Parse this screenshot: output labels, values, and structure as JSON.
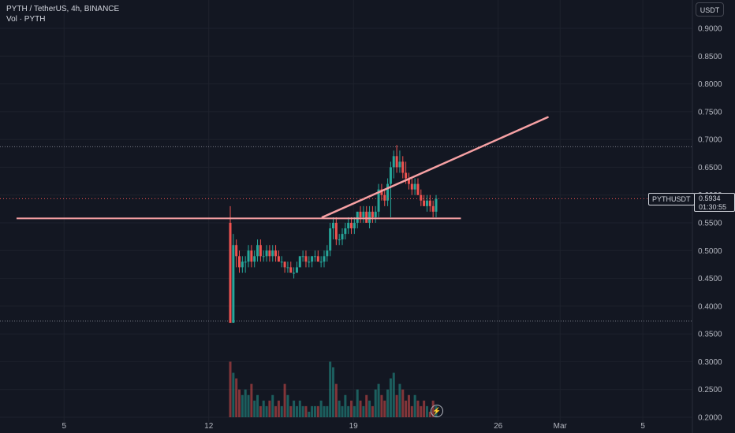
{
  "legend": {
    "title": "PYTH / TetherUS, 4h, BINANCE",
    "volume": "Vol · PYTH"
  },
  "currency_button": "USDT",
  "symbol_label": "PYTHUSDT",
  "last_price": "0.5934",
  "countdown": "01:30:55",
  "icons": {
    "replay": "lightning-icon"
  },
  "colors": {
    "background": "#131722",
    "up": "#26a69a",
    "down": "#ef5350",
    "drawing": "#f7a1a4",
    "grid": "#1e222d",
    "text": "#b2b5be"
  },
  "chart_data": {
    "type": "candlestick",
    "y_axis": {
      "min": 0.2,
      "max": 0.95,
      "ticks": [
        "0.9000",
        "0.8500",
        "0.8000",
        "0.7500",
        "0.7000",
        "0.6500",
        "0.6000",
        "0.5500",
        "0.5000",
        "0.4500",
        "0.4000",
        "0.3500",
        "0.3000",
        "0.2500",
        "0.2000"
      ]
    },
    "x_axis": {
      "start_day": 1.9,
      "end_day": 35.4,
      "ticks": [
        {
          "day": 5,
          "label": "5"
        },
        {
          "day": 12,
          "label": "12"
        },
        {
          "day": 19,
          "label": "19"
        },
        {
          "day": 26,
          "label": "26"
        },
        {
          "day": 29,
          "label": "Mar"
        },
        {
          "day": 33,
          "label": "5"
        }
      ]
    },
    "horizontal_lines": [
      0.687,
      0.373
    ],
    "drawings": [
      {
        "type": "horizontal_segment",
        "price": 0.558,
        "from_day": 2.7,
        "to_day": 24.2
      },
      {
        "type": "trend_line",
        "from": {
          "day": 17.5,
          "price": 0.56
        },
        "to": {
          "day": 28.4,
          "price": 0.74
        }
      }
    ],
    "last_price": 0.5934,
    "candles": [
      [
        0.55,
        0.58,
        0.37,
        0.37
      ],
      [
        0.37,
        0.53,
        0.37,
        0.51
      ],
      [
        0.51,
        0.52,
        0.47,
        0.49
      ],
      [
        0.49,
        0.5,
        0.46,
        0.47
      ],
      [
        0.47,
        0.49,
        0.46,
        0.48
      ],
      [
        0.48,
        0.49,
        0.46,
        0.48
      ],
      [
        0.48,
        0.51,
        0.47,
        0.5
      ],
      [
        0.5,
        0.51,
        0.47,
        0.48
      ],
      [
        0.48,
        0.5,
        0.47,
        0.49
      ],
      [
        0.49,
        0.52,
        0.48,
        0.51
      ],
      [
        0.51,
        0.52,
        0.48,
        0.49
      ],
      [
        0.49,
        0.5,
        0.48,
        0.49
      ],
      [
        0.49,
        0.51,
        0.48,
        0.5
      ],
      [
        0.5,
        0.51,
        0.48,
        0.49
      ],
      [
        0.49,
        0.51,
        0.48,
        0.5
      ],
      [
        0.5,
        0.51,
        0.48,
        0.49
      ],
      [
        0.49,
        0.5,
        0.48,
        0.48
      ],
      [
        0.48,
        0.49,
        0.47,
        0.48
      ],
      [
        0.48,
        0.48,
        0.46,
        0.47
      ],
      [
        0.47,
        0.48,
        0.46,
        0.47
      ],
      [
        0.47,
        0.48,
        0.46,
        0.46
      ],
      [
        0.46,
        0.47,
        0.45,
        0.46
      ],
      [
        0.46,
        0.48,
        0.46,
        0.47
      ],
      [
        0.47,
        0.49,
        0.47,
        0.49
      ],
      [
        0.49,
        0.5,
        0.48,
        0.49
      ],
      [
        0.49,
        0.5,
        0.47,
        0.48
      ],
      [
        0.48,
        0.49,
        0.47,
        0.48
      ],
      [
        0.48,
        0.49,
        0.47,
        0.49
      ],
      [
        0.49,
        0.5,
        0.48,
        0.49
      ],
      [
        0.49,
        0.5,
        0.48,
        0.48
      ],
      [
        0.48,
        0.49,
        0.47,
        0.48
      ],
      [
        0.48,
        0.5,
        0.47,
        0.49
      ],
      [
        0.49,
        0.51,
        0.48,
        0.5
      ],
      [
        0.5,
        0.55,
        0.49,
        0.54
      ],
      [
        0.54,
        0.56,
        0.52,
        0.55
      ],
      [
        0.55,
        0.56,
        0.51,
        0.52
      ],
      [
        0.52,
        0.53,
        0.51,
        0.52
      ],
      [
        0.52,
        0.54,
        0.51,
        0.53
      ],
      [
        0.53,
        0.55,
        0.52,
        0.54
      ],
      [
        0.54,
        0.56,
        0.53,
        0.55
      ],
      [
        0.55,
        0.56,
        0.53,
        0.54
      ],
      [
        0.54,
        0.56,
        0.53,
        0.55
      ],
      [
        0.55,
        0.57,
        0.54,
        0.57
      ],
      [
        0.57,
        0.58,
        0.55,
        0.56
      ],
      [
        0.56,
        0.58,
        0.55,
        0.57
      ],
      [
        0.57,
        0.58,
        0.55,
        0.55
      ],
      [
        0.55,
        0.58,
        0.54,
        0.57
      ],
      [
        0.57,
        0.58,
        0.55,
        0.56
      ],
      [
        0.56,
        0.58,
        0.55,
        0.57
      ],
      [
        0.57,
        0.62,
        0.56,
        0.61
      ],
      [
        0.61,
        0.62,
        0.59,
        0.6
      ],
      [
        0.6,
        0.61,
        0.58,
        0.59
      ],
      [
        0.59,
        0.63,
        0.58,
        0.62
      ],
      [
        0.62,
        0.66,
        0.56,
        0.65
      ],
      [
        0.65,
        0.68,
        0.63,
        0.67
      ],
      [
        0.67,
        0.69,
        0.64,
        0.65
      ],
      [
        0.65,
        0.68,
        0.64,
        0.66
      ],
      [
        0.66,
        0.67,
        0.63,
        0.64
      ],
      [
        0.64,
        0.66,
        0.62,
        0.63
      ],
      [
        0.63,
        0.64,
        0.61,
        0.62
      ],
      [
        0.62,
        0.63,
        0.6,
        0.61
      ],
      [
        0.61,
        0.63,
        0.6,
        0.62
      ],
      [
        0.62,
        0.63,
        0.6,
        0.6
      ],
      [
        0.6,
        0.61,
        0.58,
        0.59
      ],
      [
        0.59,
        0.6,
        0.58,
        0.58
      ],
      [
        0.58,
        0.6,
        0.57,
        0.59
      ],
      [
        0.59,
        0.6,
        0.57,
        0.58
      ],
      [
        0.58,
        0.59,
        0.56,
        0.57
      ],
      [
        0.57,
        0.6,
        0.56,
        0.5934
      ]
    ],
    "volume": [
      0.3,
      0.28,
      0.27,
      0.25,
      0.24,
      0.25,
      0.24,
      0.26,
      0.23,
      0.24,
      0.22,
      0.23,
      0.22,
      0.23,
      0.24,
      0.22,
      0.23,
      0.22,
      0.26,
      0.24,
      0.22,
      0.23,
      0.22,
      0.23,
      0.22,
      0.22,
      0.21,
      0.22,
      0.22,
      0.22,
      0.23,
      0.22,
      0.22,
      0.3,
      0.29,
      0.26,
      0.23,
      0.22,
      0.24,
      0.22,
      0.23,
      0.22,
      0.25,
      0.23,
      0.22,
      0.24,
      0.23,
      0.22,
      0.25,
      0.26,
      0.24,
      0.23,
      0.25,
      0.27,
      0.28,
      0.24,
      0.26,
      0.25,
      0.23,
      0.24,
      0.22,
      0.24,
      0.23,
      0.22,
      0.23,
      0.22,
      0.21,
      0.23,
      0.22
    ]
  }
}
